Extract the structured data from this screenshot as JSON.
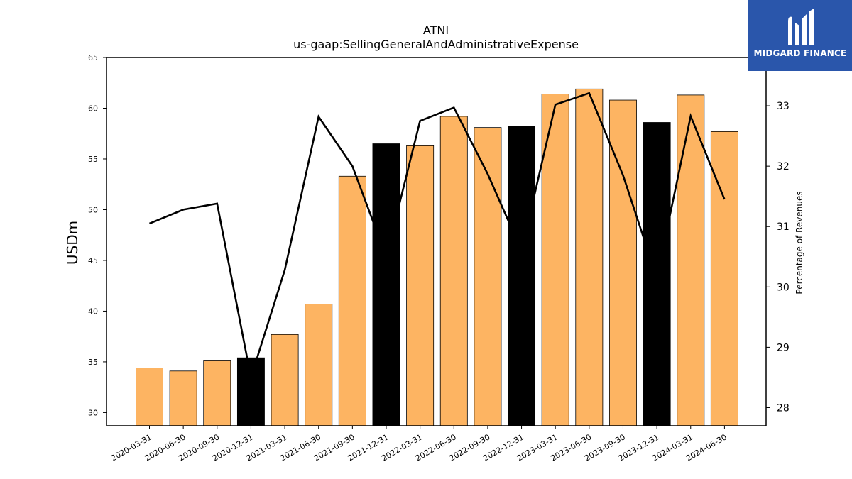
{
  "brand": {
    "name": "MIDGARD FINANCE",
    "color": "#2a56ab"
  },
  "chart_data": {
    "type": "bar",
    "title": "ATNI",
    "subtitle": "us-gaap:SellingGeneralAndAdministrativeExpense",
    "ylabel": "USDm",
    "y2label": "Percentage of Revenues",
    "categories": [
      "2020-03-31",
      "2020-06-30",
      "2020-09-30",
      "2020-12-31",
      "2021-03-31",
      "2021-06-30",
      "2021-09-30",
      "2021-12-31",
      "2022-03-31",
      "2022-06-30",
      "2022-09-30",
      "2022-12-31",
      "2023-03-31",
      "2023-06-30",
      "2023-09-30",
      "2023-12-31",
      "2024-03-31",
      "2024-06-30"
    ],
    "series": [
      {
        "type": "bar",
        "axis": "left",
        "values": [
          34.4,
          34.1,
          35.1,
          35.4,
          37.7,
          40.7,
          53.3,
          56.5,
          56.3,
          59.2,
          58.1,
          58.2,
          61.4,
          61.9,
          60.8,
          58.6,
          61.3,
          57.7
        ],
        "highlight": [
          false,
          false,
          false,
          true,
          false,
          false,
          false,
          true,
          false,
          false,
          false,
          true,
          false,
          false,
          false,
          true,
          false,
          false
        ]
      },
      {
        "type": "line",
        "axis": "right",
        "values": [
          31.05,
          31.28,
          31.38,
          28.5,
          30.28,
          32.82,
          32.0,
          30.5,
          32.75,
          32.97,
          31.87,
          30.6,
          33.02,
          33.21,
          31.85,
          30.15,
          32.83,
          31.45
        ]
      }
    ],
    "ylim": [
      28.7,
      65
    ],
    "y2lim": [
      27.7,
      33.8
    ],
    "yticks": [
      30,
      35,
      40,
      45,
      50,
      55,
      60,
      65
    ],
    "y2ticks": [
      28,
      29,
      30,
      31,
      32,
      33
    ],
    "grid": false,
    "colors": {
      "bar": "#fdb462",
      "bar_highlight": "#000000",
      "line": "#000000"
    }
  }
}
